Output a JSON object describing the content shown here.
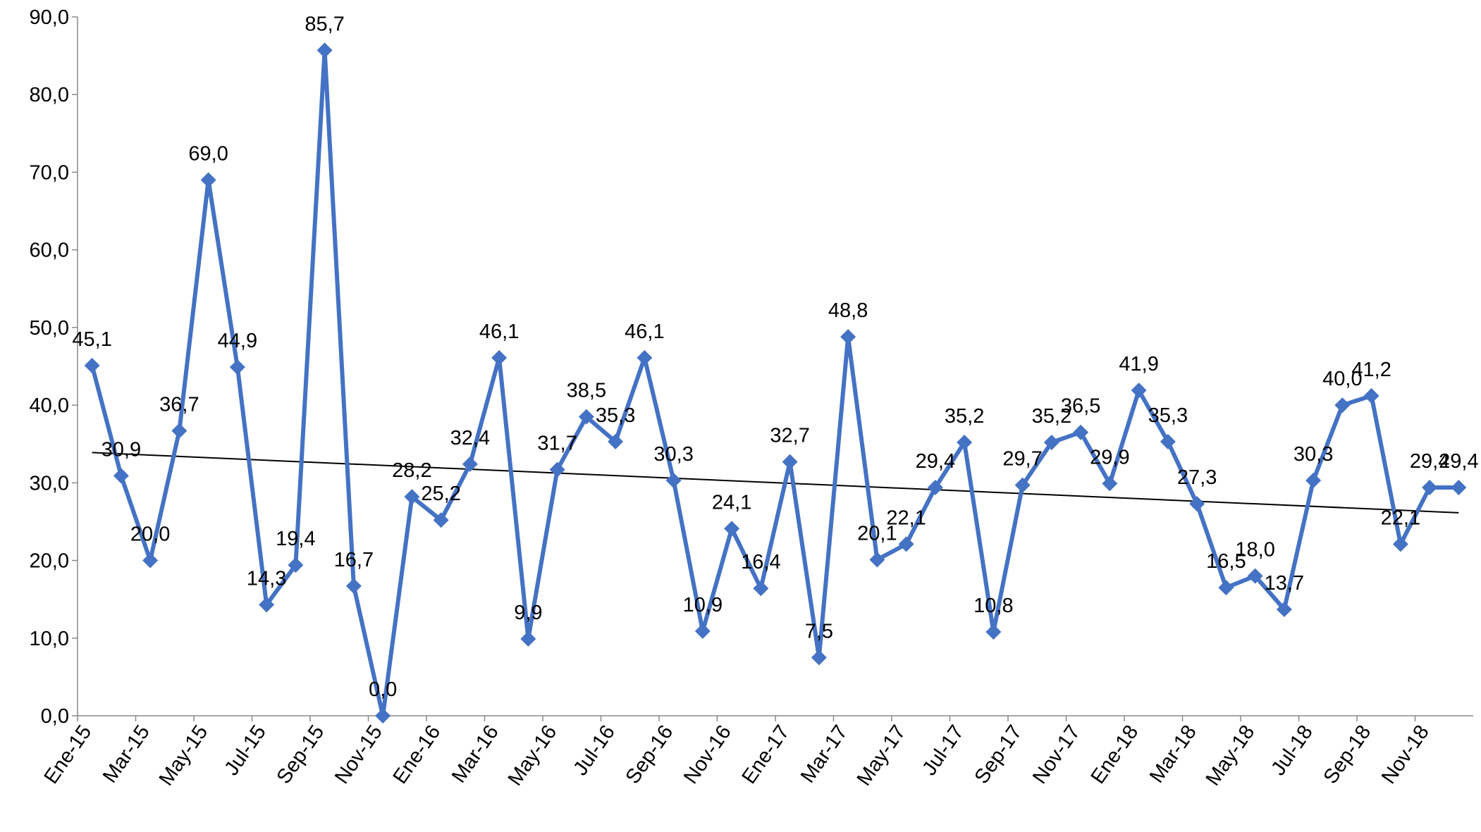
{
  "chart_data": {
    "type": "line",
    "categories": [
      "Ene-15",
      null,
      "Mar-15",
      null,
      "May-15",
      null,
      "Jul-15",
      null,
      "Sep-15",
      null,
      "Nov-15",
      null,
      "Ene-16",
      null,
      "Mar-16",
      null,
      "May-16",
      null,
      "Jul-16",
      null,
      "Sep-16",
      null,
      "Nov-16",
      null,
      "Ene-17",
      null,
      "Mar-17",
      null,
      "May-17",
      null,
      "Jul-17",
      null,
      "Sep-17",
      null,
      "Nov-17",
      null,
      "Ene-18",
      null,
      "Mar-18",
      null,
      "May-18",
      null,
      "Jul-18",
      null,
      "Sep-18",
      null,
      "Nov-18",
      null
    ],
    "values": [
      45.1,
      30.9,
      20.0,
      36.7,
      69.0,
      44.9,
      14.3,
      19.4,
      85.7,
      16.7,
      0.0,
      28.2,
      25.2,
      32.4,
      46.1,
      9.9,
      31.7,
      38.5,
      35.3,
      46.1,
      30.3,
      10.9,
      24.1,
      16.4,
      32.7,
      7.5,
      48.8,
      20.1,
      22.1,
      29.4,
      35.2,
      10.8,
      29.7,
      35.2,
      36.5,
      29.9,
      41.9,
      35.3,
      27.3,
      16.5,
      18.0,
      13.7,
      30.3,
      40.0,
      41.2,
      22.1,
      29.4,
      29.4
    ],
    "value_labels": [
      "45,1",
      "30,9",
      "20,0",
      "36,7",
      "69,0",
      "44,9",
      "14,3",
      "19,4",
      "85,7",
      "16,7",
      "0,0",
      "28,2",
      "25,2",
      "32,4",
      "46,1",
      "9,9",
      "31,7",
      "38,5",
      "35,3",
      "46,1",
      "30,3",
      "10,9",
      "24,1",
      "16,4",
      "32,7",
      "7,5",
      "48,8",
      "20,1",
      "22,1",
      "29,4",
      "35,2",
      "10,8",
      "29,7",
      "35,2",
      "36,5",
      "29,9",
      "41,9",
      "35,3",
      "27,3",
      "16,5",
      "18,0",
      "13,7",
      "30,3",
      "40,0",
      "41,2",
      "22,1",
      "29,4",
      "29,4"
    ],
    "color": "#4472c4",
    "trendline": true,
    "ylim": [
      0,
      90
    ],
    "yticks": [
      {
        "value": 0,
        "label": "0,0"
      },
      {
        "value": 10,
        "label": "10,0"
      },
      {
        "value": 20,
        "label": "20,0"
      },
      {
        "value": 30,
        "label": "30,0"
      },
      {
        "value": 40,
        "label": "40,0"
      },
      {
        "value": 50,
        "label": "50,0"
      },
      {
        "value": 60,
        "label": "60,0"
      },
      {
        "value": 70,
        "label": "70,0"
      },
      {
        "value": 80,
        "label": "80,0"
      },
      {
        "value": 90,
        "label": "90,0"
      }
    ]
  }
}
